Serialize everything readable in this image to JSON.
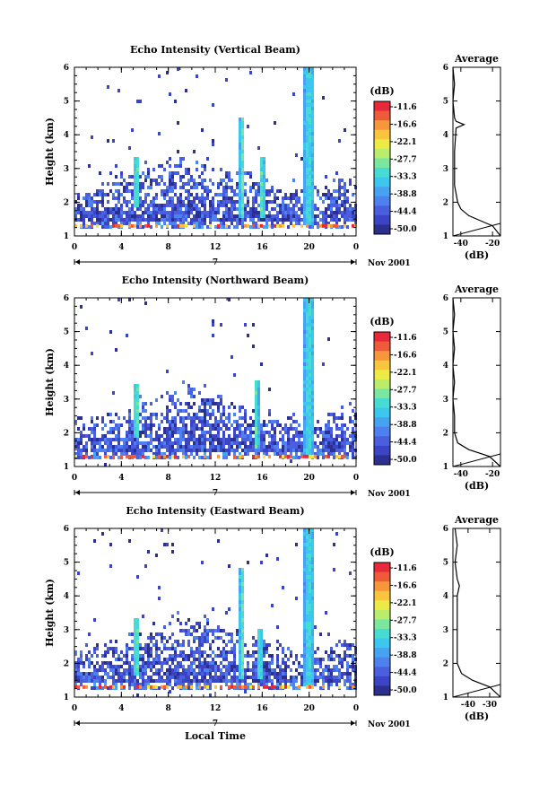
{
  "panels": [
    {
      "title": "Echo Intensity (Vertical Beam)",
      "ylabel": "Height (km)",
      "cbar_unit": "(dB)",
      "avg_title": "Average",
      "avg_xlabel": "(dB)",
      "avg_xticks": [
        "-40",
        "-20"
      ],
      "date_label": "Nov 2001",
      "time_label": "7",
      "xlabel": ""
    },
    {
      "title": "Echo Intensity (Northward Beam)",
      "ylabel": "Height (km)",
      "cbar_unit": "(dB)",
      "avg_title": "Average",
      "avg_xlabel": "(dB)",
      "avg_xticks": [
        "-40",
        "-20"
      ],
      "date_label": "Nov 2001",
      "time_label": "7",
      "xlabel": ""
    },
    {
      "title": "Echo Intensity (Eastward Beam)",
      "ylabel": "Height (km)",
      "cbar_unit": "(dB)",
      "avg_title": "Average",
      "avg_xlabel": "(dB)",
      "avg_xticks": [
        "-40",
        "-30"
      ],
      "date_label": "Nov 2001",
      "time_label": "7",
      "xlabel": "Local Time"
    }
  ],
  "chart_data": [
    {
      "type": "heatmap",
      "title": "Echo Intensity (Vertical Beam)",
      "xlabel": "",
      "ylabel": "Height (km)",
      "x_ticks": [
        "0",
        "4",
        "8",
        "12",
        "16",
        "20",
        "0"
      ],
      "y_ticks": [
        "1",
        "2",
        "3",
        "4",
        "5",
        "6"
      ],
      "xlim": [
        0,
        24
      ],
      "ylim": [
        1,
        6
      ],
      "colorbar_label": "(dB)",
      "colorbar_ticks": [
        "-11.6",
        "-16.6",
        "-22.1",
        "-27.7",
        "-33.3",
        "-38.8",
        "-44.4",
        "-50.0"
      ],
      "colorbar_range": [
        -50.0,
        -11.6
      ],
      "features": [
        {
          "time": 20.0,
          "height_range": [
            1.3,
            6.0
          ],
          "dB": -38
        },
        {
          "time": 14.3,
          "height_range": [
            1.5,
            4.5
          ],
          "dB": -36
        },
        {
          "time": 5.3,
          "height_range": [
            1.8,
            3.3
          ],
          "dB": -35
        },
        {
          "time": 16.0,
          "height_range": [
            1.5,
            3.3
          ],
          "dB": -36
        }
      ],
      "average_profile": {
        "xlim": [
          -45,
          -15
        ],
        "x_ticks": [
          "-40",
          "-20"
        ],
        "height": [
          1.0,
          1.3,
          1.4,
          1.6,
          1.8,
          2.0,
          2.5,
          3.0,
          3.5,
          4.2,
          4.3,
          4.4,
          4.5,
          5.0,
          5.5,
          6.0
        ],
        "dB": [
          -15,
          -20,
          -25,
          -35,
          -40,
          -42,
          -44,
          -44,
          -44,
          -43,
          -38,
          -43,
          -44,
          -45,
          -44,
          -45
        ]
      }
    },
    {
      "type": "heatmap",
      "title": "Echo Intensity (Northward Beam)",
      "xlabel": "",
      "ylabel": "Height (km)",
      "x_ticks": [
        "0",
        "4",
        "8",
        "12",
        "16",
        "20",
        "0"
      ],
      "y_ticks": [
        "1",
        "2",
        "3",
        "4",
        "5",
        "6"
      ],
      "xlim": [
        0,
        24
      ],
      "ylim": [
        1,
        6
      ],
      "colorbar_label": "(dB)",
      "colorbar_ticks": [
        "-11.6",
        "-16.6",
        "-22.1",
        "-27.7",
        "-33.3",
        "-38.8",
        "-44.4",
        "-50.0"
      ],
      "colorbar_range": [
        -50.0,
        -11.6
      ],
      "features": [
        {
          "time": 20.0,
          "height_range": [
            1.3,
            6.0
          ],
          "dB": -38
        },
        {
          "time": 5.3,
          "height_range": [
            1.8,
            3.4
          ],
          "dB": -35
        },
        {
          "time": 15.5,
          "height_range": [
            1.5,
            3.5
          ],
          "dB": -37
        }
      ],
      "average_profile": {
        "xlim": [
          -45,
          -15
        ],
        "x_ticks": [
          "-40",
          "-20"
        ],
        "height": [
          1.0,
          1.3,
          1.5,
          1.7,
          2.0,
          2.5,
          3.0,
          3.5,
          4.0,
          4.5,
          5.0,
          5.5,
          6.0
        ],
        "dB": [
          -15,
          -22,
          -35,
          -42,
          -44,
          -44,
          -45,
          -44,
          -45,
          -44,
          -45,
          -44,
          -45
        ]
      }
    },
    {
      "type": "heatmap",
      "title": "Echo Intensity (Eastward Beam)",
      "xlabel": "Local Time",
      "ylabel": "Height (km)",
      "x_ticks": [
        "0",
        "4",
        "8",
        "12",
        "16",
        "20",
        "0"
      ],
      "y_ticks": [
        "1",
        "2",
        "3",
        "4",
        "5",
        "6"
      ],
      "xlim": [
        0,
        24
      ],
      "ylim": [
        1,
        6
      ],
      "colorbar_label": "(dB)",
      "colorbar_ticks": [
        "-11.6",
        "-16.6",
        "-22.1",
        "-27.7",
        "-33.3",
        "-38.8",
        "-44.4",
        "-50.0"
      ],
      "colorbar_range": [
        -50.0,
        -11.6
      ],
      "features": [
        {
          "time": 20.0,
          "height_range": [
            1.3,
            6.0
          ],
          "dB": -38
        },
        {
          "time": 14.3,
          "height_range": [
            1.5,
            4.8
          ],
          "dB": -36
        },
        {
          "time": 5.3,
          "height_range": [
            1.6,
            3.3
          ],
          "dB": -35
        },
        {
          "time": 15.8,
          "height_range": [
            1.5,
            3.0
          ],
          "dB": -37
        }
      ],
      "average_profile": {
        "xlim": [
          -47,
          -25
        ],
        "x_ticks": [
          "-40",
          "-30"
        ],
        "height": [
          1.0,
          1.3,
          1.5,
          1.7,
          2.0,
          2.5,
          3.0,
          3.5,
          4.0,
          4.3,
          4.5,
          5.0,
          5.5,
          6.0
        ],
        "dB": [
          -25,
          -30,
          -38,
          -43,
          -45,
          -45,
          -45,
          -45,
          -45,
          -44,
          -45,
          -46,
          -45,
          -46
        ]
      }
    }
  ],
  "colors": {
    "colormap": [
      "#2b2f8f",
      "#3a44c4",
      "#4a5fe0",
      "#4f80f0",
      "#45a3f2",
      "#3dc6ee",
      "#46dcd3",
      "#7ae69e",
      "#b8ee6c",
      "#eeea45",
      "#f8c53c",
      "#f7963a",
      "#ef5a3a",
      "#e8293a"
    ],
    "frame": "#000000"
  }
}
